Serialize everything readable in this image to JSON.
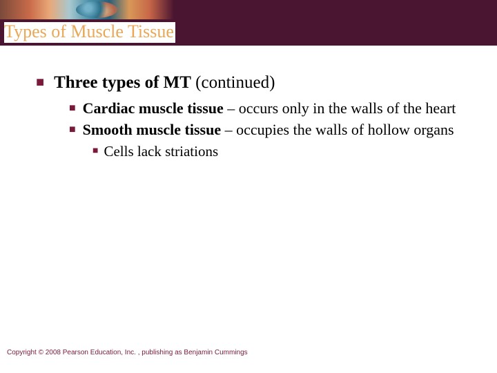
{
  "colors": {
    "title_bar_bg": "#4a1530",
    "title_text": "#e8a858",
    "bullet": "#7a1a3a",
    "body_text": "#000000",
    "copyright": "#7a1a3a",
    "page_bg": "#ffffff"
  },
  "typography": {
    "title_fontsize": 26,
    "lvl1_fontsize": 25,
    "lvl2_fontsize": 22,
    "lvl3_fontsize": 21,
    "copyright_fontsize": 10,
    "title_font": "Times New Roman",
    "body_font": "Times New Roman",
    "copyright_font": "Arial"
  },
  "title": "Types of Muscle Tissue",
  "lvl1": {
    "bold": "Three types of MT",
    "rest": " (continued)"
  },
  "lvl2_a": {
    "bold": "Cardiac muscle tissue",
    "rest": " – occurs only in the walls of the heart"
  },
  "lvl2_b": {
    "bold": "Smooth muscle tissue",
    "rest": " – occupies the walls of hollow organs"
  },
  "lvl3_a": {
    "text": "Cells lack striations"
  },
  "copyright": "Copyright © 2008 Pearson Education, Inc. , publishing as Benjamin Cummings"
}
